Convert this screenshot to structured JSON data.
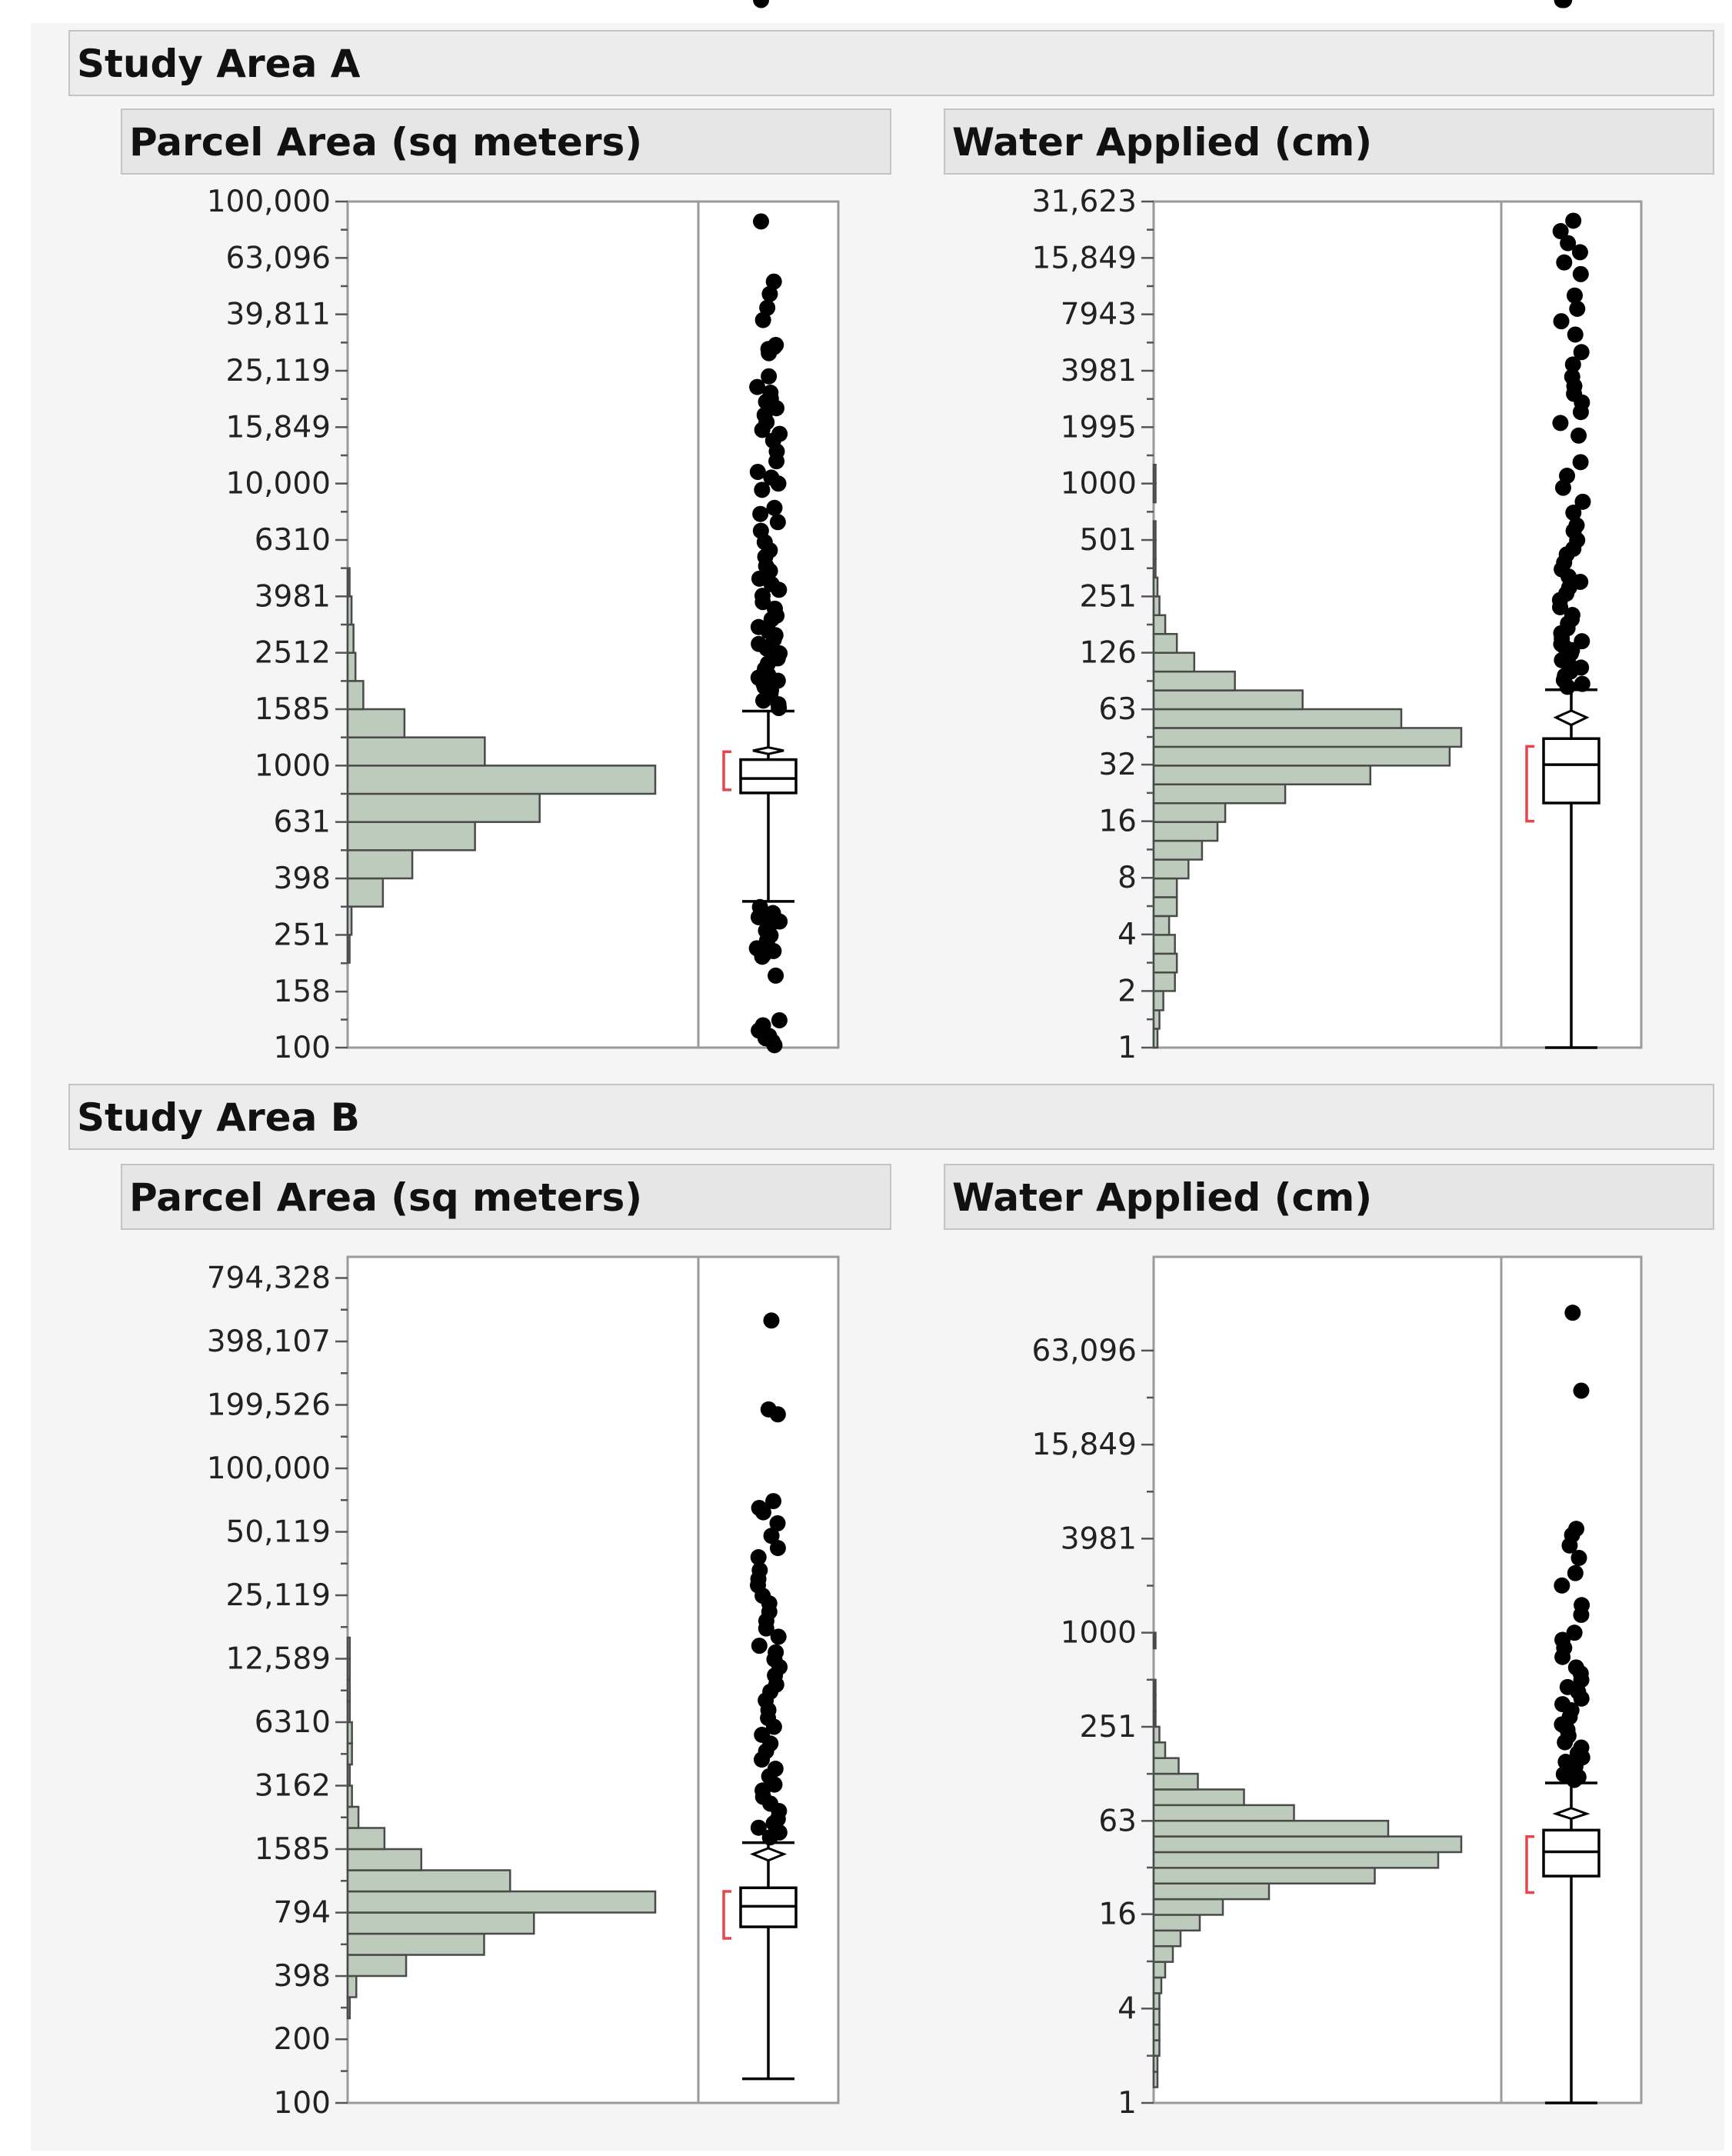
{
  "colors": {
    "histogram_fill": "#bccbbb",
    "shortest_half_bracket": "#e8454a",
    "outlier_dot": "#000000"
  },
  "chart_data": [
    {
      "type": "histogram+boxplot",
      "study_area": "Study Area A",
      "title": "Parcel Area (sq meters)",
      "scale": "log10",
      "ylim": [
        100,
        100000
      ],
      "tick_labels": [
        "100,000",
        "63,096",
        "39,811",
        "25,119",
        "15,849",
        "10,000",
        "6310",
        "3981",
        "2512",
        "1585",
        "1000",
        "631",
        "398",
        "251",
        "158",
        "100"
      ],
      "tick_values": [
        100000,
        63096,
        39811,
        25119,
        15849,
        10000,
        6310,
        3981,
        2512,
        1585,
        1000,
        631,
        398,
        251,
        158,
        100
      ],
      "histogram_bin_width_log10": 0.1,
      "histogram": [
        {
          "from": 200,
          "to": 251.19,
          "count": 1
        },
        {
          "from": 251.19,
          "to": 316.23,
          "count": 2
        },
        {
          "from": 316.23,
          "to": 398.11,
          "count": 18
        },
        {
          "from": 398.11,
          "to": 501.19,
          "count": 33
        },
        {
          "from": 501.19,
          "to": 630.96,
          "count": 65
        },
        {
          "from": 630.96,
          "to": 794.33,
          "count": 98
        },
        {
          "from": 794.33,
          "to": 1000,
          "count": 157
        },
        {
          "from": 1000,
          "to": 1258.93,
          "count": 70
        },
        {
          "from": 1258.93,
          "to": 1584.89,
          "count": 29
        },
        {
          "from": 1584.89,
          "to": 1995.26,
          "count": 8
        },
        {
          "from": 1995.26,
          "to": 2511.89,
          "count": 4
        },
        {
          "from": 2511.89,
          "to": 3162.28,
          "count": 3
        },
        {
          "from": 3162.28,
          "to": 3981.07,
          "count": 2
        },
        {
          "from": 3981.07,
          "to": 5011.87,
          "count": 1
        }
      ],
      "boxplot": {
        "min_whisker": 330,
        "q1": 800,
        "median": 900,
        "q3": 1050,
        "max_whisker": 1560,
        "mean": 1130,
        "mean_ci": [
          1100,
          1160
        ],
        "shortest_half": [
          820,
          1120
        ],
        "outliers_high": [
          85000,
          52000,
          47000,
          42000,
          38000,
          31000,
          30500,
          30000,
          29000,
          24000,
          22000,
          21000,
          20000,
          19500,
          18500,
          17500,
          16500,
          15500,
          15000,
          14200,
          13000,
          12000,
          11000,
          10500,
          10000,
          9500,
          8200,
          7800,
          7300,
          6800,
          6200,
          5800,
          5500,
          5100,
          4900,
          4600,
          4400,
          4200,
          4000,
          3800,
          3600,
          3400,
          3300,
          3100,
          3000,
          2900,
          2800,
          2700,
          2600,
          2500,
          2400,
          2300,
          2200,
          2100,
          2050,
          2000,
          1950,
          1900,
          1850,
          1800,
          1750,
          1700,
          1650,
          1600
        ],
        "outliers_low": [
          315,
          300,
          290,
          280,
          270,
          260,
          250,
          240,
          230,
          225,
          220,
          215,
          210,
          180,
          125,
          120,
          115,
          110,
          108,
          105,
          102
        ]
      }
    },
    {
      "type": "histogram+boxplot",
      "study_area": "Study Area A",
      "title": "Water Applied (cm)",
      "scale": "log10",
      "ylim": [
        1,
        31623
      ],
      "tick_labels": [
        "31,623",
        "15,849",
        "7943",
        "3981",
        "1995",
        "1000",
        "501",
        "251",
        "126",
        "63",
        "32",
        "16",
        "8",
        "4",
        "2",
        "1"
      ],
      "tick_values": [
        31623,
        15849,
        7943,
        3981,
        1995,
        1000,
        501,
        251,
        126,
        63,
        32,
        16,
        8,
        4,
        2,
        1
      ],
      "histogram_bin_width_log10": 0.1,
      "histogram": [
        {
          "from": 1,
          "to": 1.26,
          "count": 2
        },
        {
          "from": 1.26,
          "to": 1.58,
          "count": 3
        },
        {
          "from": 1.58,
          "to": 2.0,
          "count": 5
        },
        {
          "from": 2.0,
          "to": 2.51,
          "count": 11
        },
        {
          "from": 2.51,
          "to": 3.16,
          "count": 12
        },
        {
          "from": 3.16,
          "to": 3.98,
          "count": 11
        },
        {
          "from": 3.98,
          "to": 5.01,
          "count": 8
        },
        {
          "from": 5.01,
          "to": 6.31,
          "count": 12
        },
        {
          "from": 6.31,
          "to": 7.94,
          "count": 12
        },
        {
          "from": 7.94,
          "to": 10.0,
          "count": 18
        },
        {
          "from": 10.0,
          "to": 12.59,
          "count": 25
        },
        {
          "from": 12.59,
          "to": 15.85,
          "count": 33
        },
        {
          "from": 15.85,
          "to": 19.95,
          "count": 37
        },
        {
          "from": 19.95,
          "to": 25.12,
          "count": 68
        },
        {
          "from": 25.12,
          "to": 31.62,
          "count": 112
        },
        {
          "from": 31.62,
          "to": 39.81,
          "count": 153
        },
        {
          "from": 39.81,
          "to": 50.12,
          "count": 159
        },
        {
          "from": 50.12,
          "to": 63.1,
          "count": 128
        },
        {
          "from": 63.1,
          "to": 79.43,
          "count": 77
        },
        {
          "from": 79.43,
          "to": 100.0,
          "count": 42
        },
        {
          "from": 100.0,
          "to": 125.89,
          "count": 21
        },
        {
          "from": 125.89,
          "to": 158.49,
          "count": 12
        },
        {
          "from": 158.49,
          "to": 199.53,
          "count": 6
        },
        {
          "from": 199.53,
          "to": 251.19,
          "count": 3
        },
        {
          "from": 251.19,
          "to": 316.23,
          "count": 2
        },
        {
          "from": 316.23,
          "to": 398.11,
          "count": 1
        },
        {
          "from": 398.11,
          "to": 501.19,
          "count": 1
        },
        {
          "from": 501.19,
          "to": 630.96,
          "count": 1
        },
        {
          "from": 794.33,
          "to": 1000,
          "count": 1
        },
        {
          "from": 1000,
          "to": 1258.93,
          "count": 1
        }
      ],
      "boxplot": {
        "min_whisker": 1,
        "q1": 20,
        "median": 32,
        "q3": 44,
        "max_whisker": 80,
        "mean": 57,
        "mean_ci": [
          52,
          62
        ],
        "shortest_half": [
          16,
          40
        ],
        "outliers_high": [
          25000,
          22000,
          19000,
          17000,
          15000,
          13000,
          10000,
          8500,
          7300,
          6200,
          5000,
          4300,
          3700,
          3300,
          3000,
          2700,
          2400,
          2100,
          1800,
          1300,
          1100,
          950,
          800,
          700,
          600,
          560,
          500,
          450,
          420,
          380,
          350,
          320,
          300,
          280,
          260,
          240,
          220,
          200,
          190,
          180,
          170,
          160,
          150,
          145,
          140,
          135,
          130,
          125,
          120,
          115,
          110,
          105,
          100,
          95,
          90,
          86,
          83
        ]
      }
    },
    {
      "type": "histogram+boxplot",
      "study_area": "Study Area B",
      "title": "Parcel Area (sq meters)",
      "scale": "log10",
      "ylim": [
        100,
        1000000
      ],
      "tick_labels": [
        "794,328",
        "398,107",
        "199,526",
        "100,000",
        "50,119",
        "25,119",
        "12,589",
        "6310",
        "3162",
        "1585",
        "794",
        "398",
        "200",
        "100"
      ],
      "tick_values": [
        794328,
        398107,
        199526,
        100000,
        50119,
        25119,
        12589,
        6310,
        3162,
        1585,
        794,
        398,
        200,
        100
      ],
      "histogram_bin_width_log10": 0.1,
      "histogram": [
        {
          "from": 251.19,
          "to": 316.23,
          "count": 1
        },
        {
          "from": 316.23,
          "to": 398.11,
          "count": 4
        },
        {
          "from": 398.11,
          "to": 501.19,
          "count": 27
        },
        {
          "from": 501.19,
          "to": 630.96,
          "count": 63
        },
        {
          "from": 630.96,
          "to": 794.33,
          "count": 86
        },
        {
          "from": 794.33,
          "to": 1000,
          "count": 142
        },
        {
          "from": 1000,
          "to": 1258.93,
          "count": 75
        },
        {
          "from": 1258.93,
          "to": 1584.89,
          "count": 34
        },
        {
          "from": 1584.89,
          "to": 1995.26,
          "count": 17
        },
        {
          "from": 1995.26,
          "to": 2511.89,
          "count": 5
        },
        {
          "from": 2511.89,
          "to": 3162.28,
          "count": 2
        },
        {
          "from": 3162.28,
          "to": 3981.07,
          "count": 1
        },
        {
          "from": 3981.07,
          "to": 5011.87,
          "count": 2
        },
        {
          "from": 5011.87,
          "to": 6309.57,
          "count": 2
        },
        {
          "from": 6309.57,
          "to": 7943.28,
          "count": 1
        },
        {
          "from": 7943.28,
          "to": 10000,
          "count": 1
        },
        {
          "from": 10000,
          "to": 12589.25,
          "count": 1
        },
        {
          "from": 12589.25,
          "to": 15848.93,
          "count": 1
        }
      ],
      "boxplot": {
        "min_whisker": 130,
        "q1": 680,
        "median": 850,
        "q3": 1040,
        "max_whisker": 1700,
        "mean": 1500,
        "mean_ci": [
          1400,
          1600
        ],
        "shortest_half": [
          600,
          1000
        ],
        "outliers_high": [
          500000,
          190000,
          180000,
          70000,
          65000,
          62000,
          55000,
          48000,
          42000,
          38000,
          33000,
          30000,
          28000,
          25000,
          23000,
          21000,
          19000,
          17500,
          16000,
          14500,
          13500,
          12500,
          11500,
          10500,
          9500,
          8800,
          8000,
          7200,
          6600,
          6000,
          5500,
          5000,
          4600,
          4200,
          3800,
          3500,
          3200,
          3000,
          2800,
          2600,
          2400,
          2200,
          2100,
          2000,
          1900,
          1800
        ]
      }
    },
    {
      "type": "histogram+boxplot",
      "study_area": "Study Area B",
      "title": "Water Applied (cm)",
      "scale": "log10",
      "ylim": [
        1,
        250000
      ],
      "tick_labels": [
        "63,096",
        "15,849",
        "3981",
        "1000",
        "251",
        "63",
        "16",
        "4",
        "1"
      ],
      "tick_values": [
        63096,
        15849,
        3981,
        1000,
        251,
        63,
        16,
        4,
        1
      ],
      "histogram_bin_width_log10": 0.1,
      "histogram": [
        {
          "from": 1.26,
          "to": 1.58,
          "count": 2
        },
        {
          "from": 1.58,
          "to": 2.0,
          "count": 2
        },
        {
          "from": 2.0,
          "to": 2.51,
          "count": 3
        },
        {
          "from": 2.51,
          "to": 3.16,
          "count": 3
        },
        {
          "from": 3.16,
          "to": 3.98,
          "count": 3
        },
        {
          "from": 3.98,
          "to": 5.01,
          "count": 3
        },
        {
          "from": 5.01,
          "to": 6.31,
          "count": 4
        },
        {
          "from": 6.31,
          "to": 7.94,
          "count": 6
        },
        {
          "from": 7.94,
          "to": 10.0,
          "count": 10
        },
        {
          "from": 10.0,
          "to": 12.59,
          "count": 14
        },
        {
          "from": 12.59,
          "to": 15.85,
          "count": 24
        },
        {
          "from": 15.85,
          "to": 19.95,
          "count": 36
        },
        {
          "from": 19.95,
          "to": 25.12,
          "count": 60
        },
        {
          "from": 25.12,
          "to": 31.62,
          "count": 115
        },
        {
          "from": 31.62,
          "to": 39.81,
          "count": 148
        },
        {
          "from": 39.81,
          "to": 50.12,
          "count": 160
        },
        {
          "from": 50.12,
          "to": 63.1,
          "count": 122
        },
        {
          "from": 63.1,
          "to": 79.43,
          "count": 73
        },
        {
          "from": 79.43,
          "to": 100.0,
          "count": 47
        },
        {
          "from": 100.0,
          "to": 125.89,
          "count": 23
        },
        {
          "from": 125.89,
          "to": 158.49,
          "count": 13
        },
        {
          "from": 158.49,
          "to": 199.53,
          "count": 6
        },
        {
          "from": 199.53,
          "to": 251.19,
          "count": 3
        },
        {
          "from": 251.19,
          "to": 316.23,
          "count": 1
        },
        {
          "from": 316.23,
          "to": 398.11,
          "count": 1
        },
        {
          "from": 398.11,
          "to": 501.19,
          "count": 1
        },
        {
          "from": 794.33,
          "to": 1000,
          "count": 1
        }
      ],
      "boxplot": {
        "min_whisker": 1,
        "q1": 28,
        "median": 40,
        "q3": 55,
        "max_whisker": 110,
        "mean": 70,
        "mean_ci": [
          65,
          76
        ],
        "shortest_half": [
          22,
          50
        ],
        "outliers_high": [
          110000,
          35000,
          4600,
          4200,
          3600,
          3000,
          2400,
          2000,
          1500,
          1300,
          1000,
          900,
          800,
          700,
          600,
          550,
          500,
          450,
          420,
          380,
          350,
          320,
          290,
          260,
          240,
          220,
          200,
          185,
          170,
          160,
          150,
          140,
          130,
          125,
          120,
          115
        ]
      }
    }
  ],
  "sections": [
    {
      "label": "Study Area A"
    },
    {
      "label": "Study Area B"
    }
  ]
}
